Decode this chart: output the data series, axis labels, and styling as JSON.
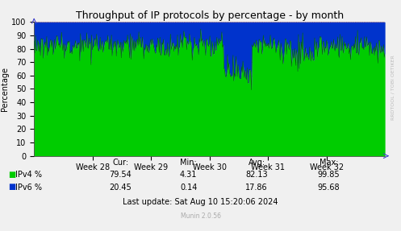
{
  "title": "Throughput of IP protocols by percentage - by month",
  "ylabel": "Percentage",
  "ylim": [
    0,
    100
  ],
  "yticks": [
    0,
    10,
    20,
    30,
    40,
    50,
    60,
    70,
    80,
    90,
    100
  ],
  "week_labels": [
    "Week 28",
    "Week 29",
    "Week 30",
    "Week 31",
    "Week 32"
  ],
  "ipv4_color": "#00cc00",
  "ipv6_color": "#0033cc",
  "bg_color": "#f0f0f0",
  "plot_bg_color": "#c8c8c8",
  "grid_color_x": "#ff4444",
  "grid_color_y": "#ff4444",
  "title_fontsize": 9,
  "axis_fontsize": 7,
  "stats": {
    "ipv4": {
      "cur": 79.54,
      "min": 4.31,
      "avg": 82.13,
      "max": 99.85
    },
    "ipv6": {
      "cur": 20.45,
      "min": 0.14,
      "avg": 17.86,
      "max": 95.68
    }
  },
  "last_update": "Last update: Sat Aug 10 15:20:06 2024",
  "munin_version": "Munin 2.0.56",
  "rrdtool_label": "RRDTOOL / TOBI OETIKER",
  "n_points": 500,
  "ipv4_base": 82.5,
  "ipv4_std": 4.5,
  "seed": 1234
}
